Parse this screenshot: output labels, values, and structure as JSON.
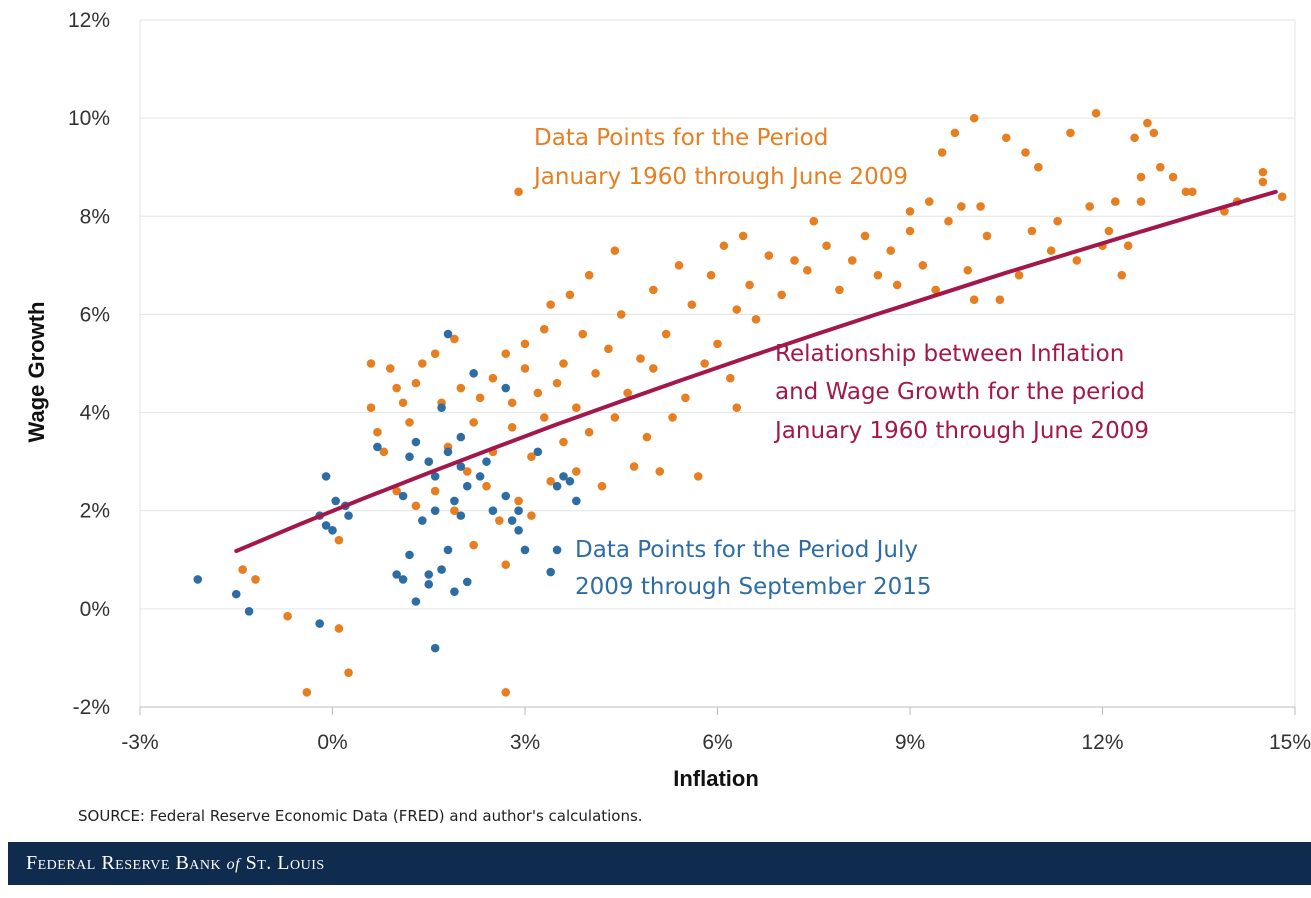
{
  "chart_data": {
    "type": "scatter",
    "xlabel": "Inflation",
    "ylabel": "Wage Growth",
    "xlim": [
      -3,
      15
    ],
    "ylim": [
      -2,
      12
    ],
    "x_ticks": [
      "-3%",
      "0%",
      "3%",
      "6%",
      "9%",
      "12%",
      "15%"
    ],
    "y_ticks": [
      "-2%",
      "0%",
      "2%",
      "4%",
      "6%",
      "8%",
      "10%",
      "12%"
    ],
    "grid": "horizontal",
    "annotations": {
      "orange_line1": "Data Points for the Period",
      "orange_line2": "January 1960 through June 2009",
      "red_line1": "Relationship between Inflation",
      "red_line2": "and Wage Growth for the period",
      "red_line3": "January 1960 through June 2009",
      "blue_line1": "Data Points for the Period July",
      "blue_line2": "2009 through September 2015"
    },
    "series": [
      {
        "type": "scatter",
        "color": "#e67e22",
        "points": [
          [
            -1.4,
            0.8
          ],
          [
            -1.2,
            0.6
          ],
          [
            -0.7,
            -0.15
          ],
          [
            -0.4,
            -1.7
          ],
          [
            0.1,
            -0.4
          ],
          [
            0.25,
            -1.3
          ],
          [
            0.1,
            1.4
          ],
          [
            2.7,
            -1.7
          ],
          [
            2.9,
            8.5
          ],
          [
            0.6,
            5.0
          ],
          [
            0.6,
            4.1
          ],
          [
            0.7,
            3.6
          ],
          [
            0.8,
            3.2
          ],
          [
            0.9,
            4.9
          ],
          [
            1.0,
            4.5
          ],
          [
            1.0,
            2.4
          ],
          [
            1.1,
            4.2
          ],
          [
            1.2,
            3.8
          ],
          [
            1.3,
            4.6
          ],
          [
            1.3,
            2.1
          ],
          [
            1.4,
            5.0
          ],
          [
            1.5,
            3.0
          ],
          [
            1.6,
            5.2
          ],
          [
            1.6,
            2.4
          ],
          [
            1.7,
            4.2
          ],
          [
            1.8,
            3.3
          ],
          [
            1.9,
            5.5
          ],
          [
            1.9,
            2.0
          ],
          [
            2.0,
            4.5
          ],
          [
            2.1,
            2.8
          ],
          [
            2.2,
            3.8
          ],
          [
            2.2,
            1.3
          ],
          [
            2.3,
            4.3
          ],
          [
            2.4,
            2.5
          ],
          [
            2.5,
            3.2
          ],
          [
            2.5,
            4.7
          ],
          [
            2.6,
            1.8
          ],
          [
            2.7,
            5.2
          ],
          [
            2.7,
            0.9
          ],
          [
            2.8,
            3.7
          ],
          [
            2.8,
            4.2
          ],
          [
            2.9,
            2.2
          ],
          [
            3.0,
            4.9
          ],
          [
            3.0,
            5.4
          ],
          [
            3.1,
            3.1
          ],
          [
            3.1,
            1.9
          ],
          [
            3.2,
            4.4
          ],
          [
            3.3,
            5.7
          ],
          [
            3.3,
            3.9
          ],
          [
            3.4,
            2.6
          ],
          [
            3.4,
            6.2
          ],
          [
            3.5,
            4.6
          ],
          [
            3.6,
            3.4
          ],
          [
            3.6,
            5.0
          ],
          [
            3.7,
            6.4
          ],
          [
            3.8,
            2.8
          ],
          [
            3.8,
            4.1
          ],
          [
            3.9,
            5.6
          ],
          [
            4.0,
            3.6
          ],
          [
            4.0,
            6.8
          ],
          [
            4.1,
            4.8
          ],
          [
            4.2,
            2.5
          ],
          [
            4.3,
            5.3
          ],
          [
            4.4,
            3.9
          ],
          [
            4.4,
            7.3
          ],
          [
            4.5,
            6.0
          ],
          [
            4.6,
            4.4
          ],
          [
            4.7,
            2.9
          ],
          [
            4.8,
            5.1
          ],
          [
            4.9,
            3.5
          ],
          [
            5.0,
            6.5
          ],
          [
            5.0,
            4.9
          ],
          [
            5.1,
            2.8
          ],
          [
            5.2,
            5.6
          ],
          [
            5.3,
            3.9
          ],
          [
            5.4,
            7.0
          ],
          [
            5.5,
            4.3
          ],
          [
            5.6,
            6.2
          ],
          [
            5.7,
            2.7
          ],
          [
            5.8,
            5.0
          ],
          [
            5.9,
            6.8
          ],
          [
            6.0,
            5.4
          ],
          [
            6.1,
            7.4
          ],
          [
            6.2,
            4.7
          ],
          [
            6.3,
            6.1
          ],
          [
            6.3,
            4.1
          ],
          [
            6.4,
            7.6
          ],
          [
            6.5,
            6.6
          ],
          [
            6.6,
            5.9
          ],
          [
            6.8,
            7.2
          ],
          [
            7.0,
            6.4
          ],
          [
            7.2,
            7.1
          ],
          [
            7.4,
            6.9
          ],
          [
            7.5,
            7.9
          ],
          [
            7.7,
            7.4
          ],
          [
            7.9,
            6.5
          ],
          [
            8.1,
            7.1
          ],
          [
            8.3,
            7.6
          ],
          [
            8.5,
            6.8
          ],
          [
            8.7,
            7.3
          ],
          [
            8.8,
            6.6
          ],
          [
            9.0,
            7.7
          ],
          [
            9.0,
            8.1
          ],
          [
            9.2,
            7.0
          ],
          [
            9.3,
            8.3
          ],
          [
            9.4,
            6.5
          ],
          [
            9.5,
            9.3
          ],
          [
            9.6,
            7.9
          ],
          [
            9.7,
            9.7
          ],
          [
            9.8,
            8.2
          ],
          [
            9.9,
            6.9
          ],
          [
            10.0,
            10.0
          ],
          [
            10.0,
            6.3
          ],
          [
            10.1,
            8.2
          ],
          [
            10.2,
            7.6
          ],
          [
            10.4,
            6.3
          ],
          [
            10.5,
            9.6
          ],
          [
            10.7,
            6.8
          ],
          [
            10.8,
            9.3
          ],
          [
            10.9,
            7.7
          ],
          [
            11.0,
            9.0
          ],
          [
            11.2,
            7.3
          ],
          [
            11.3,
            7.9
          ],
          [
            11.5,
            9.7
          ],
          [
            11.6,
            7.1
          ],
          [
            11.8,
            8.2
          ],
          [
            11.9,
            10.1
          ],
          [
            12.0,
            7.4
          ],
          [
            12.1,
            7.7
          ],
          [
            12.2,
            8.3
          ],
          [
            12.3,
            6.8
          ],
          [
            12.4,
            7.4
          ],
          [
            12.5,
            9.6
          ],
          [
            12.6,
            8.8
          ],
          [
            12.7,
            9.9
          ],
          [
            12.8,
            9.7
          ],
          [
            12.9,
            9.0
          ],
          [
            13.1,
            8.8
          ],
          [
            13.3,
            8.5
          ],
          [
            13.9,
            8.1
          ],
          [
            14.1,
            8.3
          ],
          [
            14.5,
            8.9
          ],
          [
            14.5,
            8.7
          ],
          [
            14.8,
            8.4
          ],
          [
            12.6,
            8.3
          ],
          [
            13.4,
            8.5
          ]
        ]
      },
      {
        "type": "scatter",
        "color": "#2e6da4",
        "points": [
          [
            -2.1,
            0.6
          ],
          [
            -1.5,
            0.3
          ],
          [
            -1.3,
            -0.05
          ],
          [
            -0.2,
            -0.3
          ],
          [
            -0.2,
            1.9
          ],
          [
            -0.1,
            2.7
          ],
          [
            -0.1,
            1.7
          ],
          [
            0.0,
            1.6
          ],
          [
            0.05,
            2.2
          ],
          [
            0.2,
            2.1
          ],
          [
            0.25,
            1.9
          ],
          [
            0.7,
            3.3
          ],
          [
            1.0,
            0.7
          ],
          [
            1.1,
            0.6
          ],
          [
            1.1,
            2.3
          ],
          [
            1.2,
            3.1
          ],
          [
            1.2,
            1.1
          ],
          [
            1.3,
            0.15
          ],
          [
            1.3,
            3.4
          ],
          [
            1.4,
            1.8
          ],
          [
            1.5,
            0.7
          ],
          [
            1.5,
            0.5
          ],
          [
            1.5,
            3.0
          ],
          [
            1.6,
            -0.8
          ],
          [
            1.6,
            2.0
          ],
          [
            1.6,
            2.7
          ],
          [
            1.7,
            0.8
          ],
          [
            1.7,
            4.1
          ],
          [
            1.8,
            3.2
          ],
          [
            1.8,
            1.2
          ],
          [
            1.8,
            5.6
          ],
          [
            1.9,
            0.35
          ],
          [
            1.9,
            2.2
          ],
          [
            2.0,
            1.9
          ],
          [
            2.0,
            3.5
          ],
          [
            2.0,
            2.9
          ],
          [
            2.1,
            0.55
          ],
          [
            2.1,
            2.5
          ],
          [
            2.2,
            4.8
          ],
          [
            2.3,
            2.7
          ],
          [
            2.4,
            3.0
          ],
          [
            2.5,
            2.0
          ],
          [
            2.7,
            2.3
          ],
          [
            2.7,
            4.5
          ],
          [
            2.8,
            1.8
          ],
          [
            2.9,
            1.6
          ],
          [
            2.9,
            2.0
          ],
          [
            3.0,
            1.2
          ],
          [
            3.2,
            3.2
          ],
          [
            3.4,
            0.75
          ],
          [
            3.5,
            1.2
          ],
          [
            3.5,
            2.5
          ],
          [
            3.6,
            2.7
          ],
          [
            3.7,
            2.6
          ],
          [
            3.8,
            2.2
          ]
        ]
      },
      {
        "type": "line",
        "color": "#a3174a",
        "points": [
          [
            -1.5,
            1.18
          ],
          [
            -0.5,
            1.73
          ],
          [
            0.5,
            2.26
          ],
          [
            1.5,
            2.77
          ],
          [
            2.5,
            3.27
          ],
          [
            3.5,
            3.76
          ],
          [
            4.5,
            4.23
          ],
          [
            5.5,
            4.69
          ],
          [
            6.5,
            5.14
          ],
          [
            7.5,
            5.58
          ],
          [
            8.5,
            6.01
          ],
          [
            9.5,
            6.43
          ],
          [
            10.5,
            6.85
          ],
          [
            11.5,
            7.25
          ],
          [
            12.5,
            7.65
          ],
          [
            13.5,
            8.04
          ],
          [
            14.7,
            8.5
          ]
        ]
      }
    ]
  },
  "source": "SOURCE: Federal Reserve Economic Data (FRED) and author's calculations.",
  "footer": {
    "brand_part1": "Federal Reserve Bank",
    "brand_of": "of",
    "brand_part2": "St. Louis"
  }
}
